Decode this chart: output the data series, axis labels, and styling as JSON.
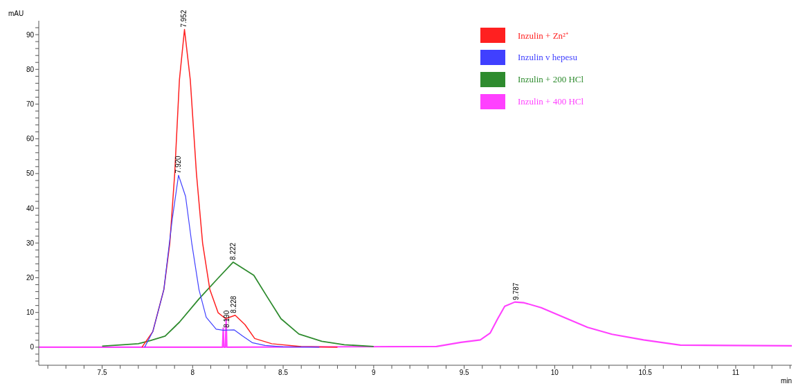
{
  "chart_data": {
    "type": "line",
    "xlabel": "min",
    "ylabel": "mAU",
    "xlim": [
      7.15,
      11.31
    ],
    "ylim": [
      -5.2,
      94
    ],
    "xticks": [
      {
        "value": 7.2,
        "label": null
      },
      {
        "value": 7.3,
        "label": null
      },
      {
        "value": 7.4,
        "label": null
      },
      7.5,
      {
        "value": 7.6,
        "label": null
      },
      {
        "value": 7.7,
        "label": null
      },
      {
        "value": 7.8,
        "label": null
      },
      {
        "value": 7.9,
        "label": null
      },
      8,
      {
        "value": 8.1,
        "label": null
      },
      {
        "value": 8.2,
        "label": null
      },
      {
        "value": 8.3,
        "label": null
      },
      {
        "value": 8.4,
        "label": null
      },
      8.5,
      {
        "value": 8.6,
        "label": null
      },
      {
        "value": 8.7,
        "label": null
      },
      {
        "value": 8.8,
        "label": null
      },
      {
        "value": 8.9,
        "label": null
      },
      9,
      {
        "value": 9.1,
        "label": null
      },
      {
        "value": 9.2,
        "label": null
      },
      {
        "value": 9.3,
        "label": null
      },
      {
        "value": 9.4,
        "label": null
      },
      9.5,
      {
        "value": 9.6,
        "label": null
      },
      {
        "value": 9.7,
        "label": null
      },
      {
        "value": 9.8,
        "label": null
      },
      {
        "value": 9.9,
        "label": null
      },
      10,
      {
        "value": 10.1,
        "label": null
      },
      {
        "value": 10.2,
        "label": null
      },
      {
        "value": 10.3,
        "label": null
      },
      {
        "value": 10.4,
        "label": null
      },
      10.5,
      {
        "value": 10.6,
        "label": null
      },
      {
        "value": 10.7,
        "label": null
      },
      {
        "value": 10.8,
        "label": null
      },
      {
        "value": 10.9,
        "label": null
      },
      11,
      {
        "value": 11.1,
        "label": null
      },
      {
        "value": 11.2,
        "label": null
      },
      {
        "value": 11.3,
        "label": null
      }
    ],
    "yticks": [
      {
        "value": -4,
        "label": null
      },
      {
        "value": -2,
        "label": null
      },
      0,
      {
        "value": 2,
        "label": null
      },
      {
        "value": 4,
        "label": null
      },
      {
        "value": 6,
        "label": null
      },
      {
        "value": 8,
        "label": null
      },
      10,
      {
        "value": 12,
        "label": null
      },
      {
        "value": 14,
        "label": null
      },
      {
        "value": 16,
        "label": null
      },
      {
        "value": 18,
        "label": null
      },
      20,
      {
        "value": 22,
        "label": null
      },
      {
        "value": 24,
        "label": null
      },
      {
        "value": 26,
        "label": null
      },
      {
        "value": 28,
        "label": null
      },
      30,
      {
        "value": 32,
        "label": null
      },
      {
        "value": 34,
        "label": null
      },
      {
        "value": 36,
        "label": null
      },
      {
        "value": 38,
        "label": null
      },
      40,
      {
        "value": 42,
        "label": null
      },
      {
        "value": 44,
        "label": null
      },
      {
        "value": 46,
        "label": null
      },
      {
        "value": 48,
        "label": null
      },
      50,
      {
        "value": 52,
        "label": null
      },
      {
        "value": 54,
        "label": null
      },
      {
        "value": 56,
        "label": null
      },
      {
        "value": 58,
        "label": null
      },
      60,
      {
        "value": 62,
        "label": null
      },
      {
        "value": 64,
        "label": null
      },
      {
        "value": 66,
        "label": null
      },
      {
        "value": 68,
        "label": null
      },
      70,
      {
        "value": 72,
        "label": null
      },
      {
        "value": 74,
        "label": null
      },
      {
        "value": 76,
        "label": null
      },
      {
        "value": 78,
        "label": null
      },
      80,
      {
        "value": 82,
        "label": null
      },
      {
        "value": 84,
        "label": null
      },
      {
        "value": 86,
        "label": null
      },
      {
        "value": 88,
        "label": null
      },
      90,
      {
        "value": 92,
        "label": null
      }
    ],
    "grid": false,
    "legend": "top right",
    "marker": "none",
    "line_style": "solid",
    "series": [
      {
        "name": "Inzulin + Zn²⁺",
        "color": "#ff2020",
        "x": [
          7.72,
          7.78,
          7.841,
          7.874,
          7.901,
          7.927,
          7.955,
          7.987,
          8.021,
          8.055,
          8.095,
          8.141,
          8.182,
          8.235,
          8.289,
          8.343,
          8.437,
          8.6,
          8.8
        ],
        "values": [
          0,
          4.5,
          16.6,
          30,
          50,
          77,
          91.5,
          77,
          50,
          30,
          16.6,
          9.9,
          8.2,
          9.2,
          6.5,
          2.5,
          1,
          0.2,
          0
        ]
      },
      {
        "name": "Inzulin v hepesu",
        "color": "#4040ff",
        "x": [
          7.735,
          7.78,
          7.841,
          7.887,
          7.922,
          7.961,
          7.995,
          8.035,
          8.075,
          8.13,
          8.169,
          8.229,
          8.276,
          8.329,
          8.4,
          8.5,
          8.7
        ],
        "values": [
          0,
          4.5,
          16.6,
          36.7,
          49.5,
          43.4,
          30,
          16.6,
          8.6,
          5.2,
          4.9,
          5,
          3.2,
          1.3,
          0.5,
          0.1,
          0
        ]
      },
      {
        "name": "Inzulin + 200 HCl",
        "color": "#2e8b2e",
        "x": [
          7.5,
          7.7,
          7.766,
          7.848,
          7.927,
          8.035,
          8.141,
          8.224,
          8.338,
          8.413,
          8.488,
          8.587,
          8.713,
          8.838,
          9
        ],
        "values": [
          0.3,
          1,
          1.9,
          3.2,
          7.2,
          13.9,
          19.9,
          24.5,
          20.7,
          14.4,
          8.2,
          3.8,
          1.7,
          0.7,
          0.2
        ]
      },
      {
        "name": "Inzulin + 400 HCl",
        "color": "#ff40ff",
        "x": [
          7.15,
          8.165,
          8.169,
          8.173,
          8.181,
          8.185,
          8.189,
          9.347,
          9.482,
          9.589,
          9.644,
          9.684,
          9.724,
          9.78,
          9.831,
          9.925,
          10.06,
          10.182,
          10.317,
          10.491,
          10.694,
          10.963,
          11.31
        ],
        "values": [
          0,
          0,
          5.5,
          0,
          0,
          8.2,
          0,
          0.2,
          1.4,
          2.1,
          4.1,
          8.1,
          11.8,
          13,
          12.8,
          11.4,
          8.4,
          5.7,
          3.7,
          2.1,
          0.6,
          0.5,
          0.4
        ]
      }
    ],
    "annotations": [
      {
        "text": "7.952",
        "x": 7.952,
        "y": 91.5
      },
      {
        "text": "7.920",
        "x": 7.92,
        "y": 49.5
      },
      {
        "text": "8.222",
        "x": 8.222,
        "y": 24.5
      },
      {
        "text": "8.228",
        "x": 8.228,
        "y": 9.2
      },
      {
        "text": "8.190",
        "x": 8.19,
        "y": 5
      },
      {
        "text": "9.787",
        "x": 9.787,
        "y": 13
      }
    ]
  }
}
